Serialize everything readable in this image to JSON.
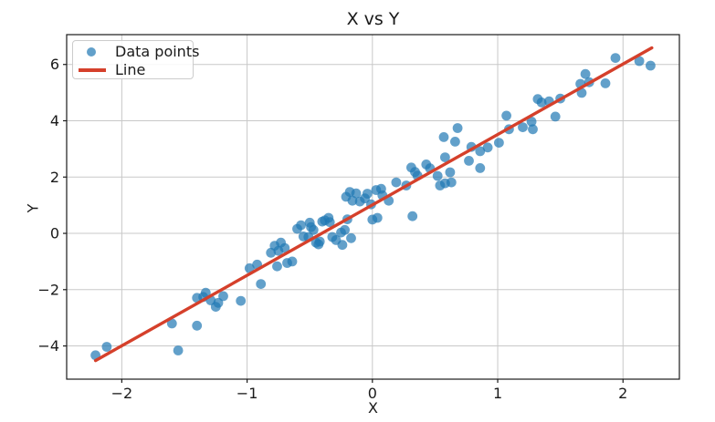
{
  "figure": {
    "title": "X vs Y",
    "xlabel": "X",
    "ylabel": "Y",
    "background": "#ffffff"
  },
  "legend": {
    "position": "upper left",
    "items": [
      {
        "label": "Data points",
        "marker": "circle",
        "color": "#1f77b4",
        "alpha": 0.7
      },
      {
        "label": "Line",
        "marker": "line",
        "color": "#d5402b"
      }
    ]
  },
  "chart_data": {
    "type": "scatter",
    "title": "X vs Y",
    "xlabel": "X",
    "ylabel": "Y",
    "xlim": [
      -2.44,
      2.45
    ],
    "ylim": [
      -5.18,
      7.06
    ],
    "grid": true,
    "grid_color": "#c8c8c8",
    "spine_color": "#1a1a1a",
    "tick_color": "#1a1a1a",
    "legend_position": "upper left",
    "xticks": [
      {
        "v": -2,
        "label": "−2"
      },
      {
        "v": -1,
        "label": "−1"
      },
      {
        "v": 0,
        "label": "0"
      },
      {
        "v": 1,
        "label": "1"
      },
      {
        "v": 2,
        "label": "2"
      }
    ],
    "yticks": [
      {
        "v": -4,
        "label": "−4"
      },
      {
        "v": -2,
        "label": "−2"
      },
      {
        "v": 0,
        "label": "0"
      },
      {
        "v": 2,
        "label": "2"
      },
      {
        "v": 4,
        "label": "4"
      },
      {
        "v": 6,
        "label": "6"
      }
    ],
    "series": [
      {
        "name": "Data points",
        "type": "scatter",
        "color": "#1f77b4",
        "alpha": 0.7,
        "marker_radius": 5.4,
        "points": [
          [
            -2.21,
            -4.33
          ],
          [
            -2.12,
            -4.03
          ],
          [
            -1.6,
            -3.2
          ],
          [
            -1.55,
            -4.16
          ],
          [
            -1.4,
            -3.28
          ],
          [
            -1.4,
            -2.29
          ],
          [
            -1.35,
            -2.26
          ],
          [
            -1.33,
            -2.11
          ],
          [
            -1.29,
            -2.38
          ],
          [
            -1.25,
            -2.61
          ],
          [
            -1.23,
            -2.47
          ],
          [
            -1.19,
            -2.23
          ],
          [
            -1.05,
            -2.4
          ],
          [
            -0.98,
            -1.24
          ],
          [
            -0.92,
            -1.11
          ],
          [
            -0.89,
            -1.8
          ],
          [
            -0.81,
            -0.69
          ],
          [
            -0.78,
            -0.44
          ],
          [
            -0.76,
            -1.17
          ],
          [
            -0.75,
            -0.62
          ],
          [
            -0.73,
            -0.33
          ],
          [
            -0.7,
            -0.52
          ],
          [
            -0.68,
            -1.05
          ],
          [
            -0.64,
            -1.0
          ],
          [
            -0.6,
            0.16
          ],
          [
            -0.57,
            0.29
          ],
          [
            -0.55,
            -0.11
          ],
          [
            -0.51,
            -0.13
          ],
          [
            -0.5,
            0.38
          ],
          [
            -0.49,
            0.22
          ],
          [
            -0.47,
            0.12
          ],
          [
            -0.45,
            -0.33
          ],
          [
            -0.43,
            -0.39
          ],
          [
            -0.42,
            -0.29
          ],
          [
            -0.4,
            0.42
          ],
          [
            -0.38,
            0.46
          ],
          [
            -0.35,
            0.55
          ],
          [
            -0.34,
            0.4
          ],
          [
            -0.32,
            -0.13
          ],
          [
            -0.29,
            -0.24
          ],
          [
            -0.25,
            0.03
          ],
          [
            -0.24,
            -0.41
          ],
          [
            -0.22,
            0.12
          ],
          [
            -0.2,
            0.5
          ],
          [
            -0.17,
            -0.17
          ],
          [
            -0.21,
            1.3
          ],
          [
            -0.18,
            1.47
          ],
          [
            -0.16,
            1.16
          ],
          [
            -0.13,
            1.42
          ],
          [
            -0.1,
            1.13
          ],
          [
            -0.06,
            1.24
          ],
          [
            -0.04,
            1.41
          ],
          [
            -0.01,
            1.03
          ],
          [
            0.03,
            1.54
          ],
          [
            0.07,
            1.58
          ],
          [
            0.08,
            1.35
          ],
          [
            0.13,
            1.16
          ],
          [
            0.19,
            1.81
          ],
          [
            0.27,
            1.7
          ],
          [
            0.0,
            0.49
          ],
          [
            0.04,
            0.55
          ],
          [
            0.32,
            0.61
          ],
          [
            0.31,
            2.34
          ],
          [
            0.34,
            2.18
          ],
          [
            0.36,
            2.05
          ],
          [
            0.43,
            2.45
          ],
          [
            0.46,
            2.31
          ],
          [
            0.52,
            2.04
          ],
          [
            0.54,
            1.7
          ],
          [
            0.58,
            1.78
          ],
          [
            0.62,
            2.17
          ],
          [
            0.63,
            1.81
          ],
          [
            0.57,
            3.42
          ],
          [
            0.58,
            2.7
          ],
          [
            0.66,
            3.26
          ],
          [
            0.68,
            3.74
          ],
          [
            0.77,
            2.58
          ],
          [
            0.79,
            3.07
          ],
          [
            0.86,
            2.92
          ],
          [
            0.86,
            2.32
          ],
          [
            0.92,
            3.05
          ],
          [
            1.01,
            3.22
          ],
          [
            1.07,
            4.18
          ],
          [
            1.09,
            3.7
          ],
          [
            1.2,
            3.77
          ],
          [
            1.27,
            3.97
          ],
          [
            1.28,
            3.7
          ],
          [
            1.32,
            4.77
          ],
          [
            1.35,
            4.65
          ],
          [
            1.41,
            4.69
          ],
          [
            1.46,
            4.15
          ],
          [
            1.5,
            4.79
          ],
          [
            1.66,
            5.31
          ],
          [
            1.67,
            4.99
          ],
          [
            1.7,
            5.66
          ],
          [
            1.73,
            5.37
          ],
          [
            1.86,
            5.33
          ],
          [
            1.94,
            6.23
          ],
          [
            2.13,
            6.12
          ],
          [
            2.22,
            5.96
          ]
        ]
      },
      {
        "name": "Line",
        "type": "line",
        "color": "#d5402b",
        "width": 3.4,
        "points": [
          [
            -2.21,
            -4.52
          ],
          [
            2.23,
            6.59
          ]
        ]
      }
    ]
  }
}
